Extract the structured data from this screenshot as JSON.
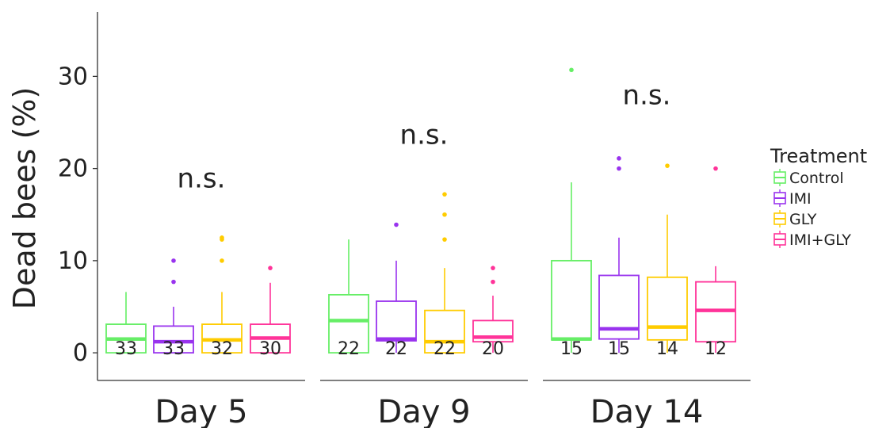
{
  "chart_data": {
    "type": "boxplot",
    "ylabel": "Dead bees (%)",
    "ylim": [
      -3,
      37
    ],
    "yticks": [
      0,
      10,
      20,
      30
    ],
    "legend": {
      "title": "Treatment",
      "placement": "right",
      "entries": [
        "Control",
        "IMI",
        "GLY",
        "IMI+GLY"
      ]
    },
    "colors": {
      "Control": "#66EE66",
      "IMI": "#9933EE",
      "GLY": "#FFCC00",
      "IMI+GLY": "#FF3399"
    },
    "significance_label": "n.s.",
    "panels": [
      {
        "label": "Day 5",
        "boxes": [
          {
            "treatment": "Control",
            "whisker_low": 0,
            "q1": 0,
            "median": 1.5,
            "q3": 3.1,
            "whisker_high": 6.6,
            "outliers": [],
            "n": "33"
          },
          {
            "treatment": "IMI",
            "whisker_low": 0,
            "q1": 0,
            "median": 1.2,
            "q3": 2.9,
            "whisker_high": 5.0,
            "outliers": [
              7.7,
              10.0
            ],
            "n": "33"
          },
          {
            "treatment": "GLY",
            "whisker_low": 0,
            "q1": 0,
            "median": 1.4,
            "q3": 3.1,
            "whisker_high": 6.6,
            "outliers": [
              10.0,
              12.3,
              12.5
            ],
            "n": "32"
          },
          {
            "treatment": "IMI+GLY",
            "whisker_low": 0,
            "q1": 0,
            "median": 1.6,
            "q3": 3.1,
            "whisker_high": 7.6,
            "outliers": [
              9.2
            ],
            "n": "30"
          }
        ],
        "significance_y": 19
      },
      {
        "label": "Day 9",
        "boxes": [
          {
            "treatment": "Control",
            "whisker_low": 0,
            "q1": 0,
            "median": 3.5,
            "q3": 6.3,
            "whisker_high": 12.3,
            "outliers": [],
            "n": "22"
          },
          {
            "treatment": "IMI",
            "whisker_low": 0,
            "q1": 1.3,
            "median": 1.5,
            "q3": 5.6,
            "whisker_high": 10.0,
            "outliers": [
              13.9
            ],
            "n": "22"
          },
          {
            "treatment": "GLY",
            "whisker_low": 0,
            "q1": 0,
            "median": 1.2,
            "q3": 4.6,
            "whisker_high": 9.2,
            "outliers": [
              12.3,
              15.0,
              17.2
            ],
            "n": "22"
          },
          {
            "treatment": "IMI+GLY",
            "whisker_low": 0,
            "q1": 1.2,
            "median": 1.7,
            "q3": 3.5,
            "whisker_high": 6.2,
            "outliers": [
              7.7,
              9.2
            ],
            "n": "20"
          }
        ],
        "significance_y": 23.7
      },
      {
        "label": "Day 14",
        "boxes": [
          {
            "treatment": "Control",
            "whisker_low": 0,
            "q1": 1.4,
            "median": 1.5,
            "q3": 10.0,
            "whisker_high": 18.5,
            "outliers": [
              30.7
            ],
            "n": "15"
          },
          {
            "treatment": "IMI",
            "whisker_low": 0,
            "q1": 1.5,
            "median": 2.6,
            "q3": 8.4,
            "whisker_high": 12.5,
            "outliers": [
              20.0,
              21.1
            ],
            "n": "15"
          },
          {
            "treatment": "GLY",
            "whisker_low": 0,
            "q1": 1.4,
            "median": 2.8,
            "q3": 8.2,
            "whisker_high": 15.0,
            "outliers": [
              20.3
            ],
            "n": "14"
          },
          {
            "treatment": "IMI+GLY",
            "whisker_low": 0,
            "q1": 1.2,
            "median": 4.6,
            "q3": 7.7,
            "whisker_high": 9.4,
            "outliers": [
              20.0
            ],
            "n": "12"
          }
        ],
        "significance_y": 28
      }
    ]
  }
}
